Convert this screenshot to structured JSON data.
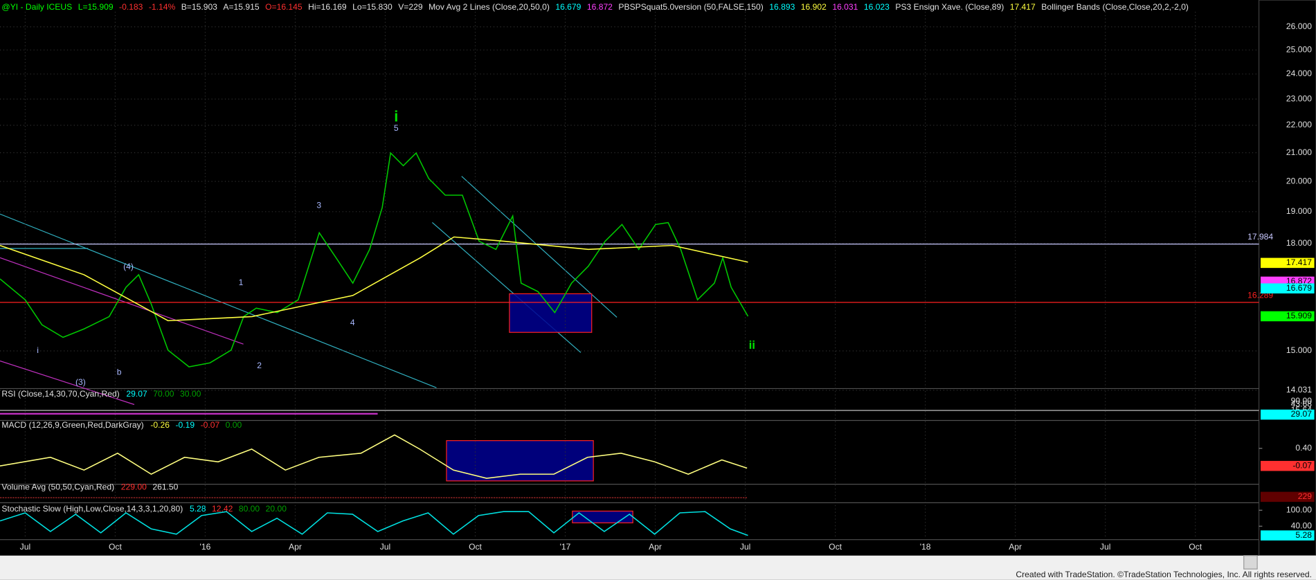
{
  "header": {
    "items": [
      {
        "text": "@YI - Daily  ICEUS",
        "color": "#00ff00"
      },
      {
        "text": "L=15.909",
        "color": "#00ff00"
      },
      {
        "text": "-0.183",
        "color": "#ff3030"
      },
      {
        "text": "-1.14%",
        "color": "#ff3030"
      },
      {
        "text": "B=15.903",
        "color": "#e0e0e0"
      },
      {
        "text": "A=15.915",
        "color": "#e0e0e0"
      },
      {
        "text": "O=16.145",
        "color": "#ff3030"
      },
      {
        "text": "Hi=16.169",
        "color": "#e0e0e0"
      },
      {
        "text": "Lo=15.830",
        "color": "#e0e0e0"
      },
      {
        "text": "V=229",
        "color": "#e0e0e0"
      },
      {
        "text": "Mov Avg 2 Lines (Close,20,50,0)",
        "color": "#e0e0e0"
      },
      {
        "text": "16.679",
        "color": "#00ffff"
      },
      {
        "text": "16.872",
        "color": "#ff40ff"
      },
      {
        "text": "PBSPSquat5.0version (50,FALSE,150)",
        "color": "#e0e0e0"
      },
      {
        "text": "16.893",
        "color": "#00ffff"
      },
      {
        "text": "16.902",
        "color": "#ffff40"
      },
      {
        "text": "16.031",
        "color": "#ff40ff"
      },
      {
        "text": "16.023",
        "color": "#00ffff"
      },
      {
        "text": "PS3 Ensign Xave. (Close,89)",
        "color": "#e0e0e0"
      },
      {
        "text": "17.417",
        "color": "#ffff40"
      },
      {
        "text": "Bollinger Bands (Close,Close,20,2,-2,0)",
        "color": "#e0e0e0"
      }
    ]
  },
  "panels": [
    {
      "title": "RSI (Close,14,30,70,Cyan,Red)",
      "values": [
        {
          "text": "29.07",
          "color": "#00ffff"
        },
        {
          "text": "70.00",
          "color": "#00a000"
        },
        {
          "text": "30.00",
          "color": "#00a000"
        }
      ],
      "axis_labels": [
        {
          "text": "90.00",
          "color": "#e0e0e0"
        },
        {
          "text": "43.68",
          "color": "#e0e0e0"
        },
        {
          "text": "15.64",
          "color": "#e0e0e0"
        },
        {
          "text": "29.07",
          "color": "#00ffff",
          "badge": true
        }
      ]
    },
    {
      "title": "Volume Avg (50,50,Cyan,Red)",
      "values": [
        {
          "text": "229.00",
          "color": "#ff3030"
        },
        {
          "text": "261.50",
          "color": "#e0e0e0"
        }
      ],
      "axis_labels": [
        {
          "text": "229",
          "color": "#ff3030",
          "badge": true
        }
      ]
    }
  ],
  "chart_data": [
    {
      "type": "line",
      "log_scale": true,
      "grid": true,
      "xlim": [
        -0.84,
        41.12
      ],
      "xticks": [
        {
          "value": 0,
          "label": "Jul"
        },
        {
          "value": 3,
          "label": "Oct"
        },
        {
          "value": 6,
          "label": "'16"
        },
        {
          "value": 9,
          "label": "Apr"
        },
        {
          "value": 12,
          "label": "Jul"
        },
        {
          "value": 15,
          "label": "Oct"
        },
        {
          "value": 18,
          "label": "'17"
        },
        {
          "value": 21,
          "label": "Apr"
        },
        {
          "value": 24,
          "label": "Jul"
        },
        {
          "value": 27,
          "label": "Oct"
        },
        {
          "value": 30,
          "label": "'18"
        },
        {
          "value": 33,
          "label": "Apr"
        },
        {
          "value": 36,
          "label": "Jul"
        },
        {
          "value": 39,
          "label": "Oct"
        }
      ],
      "ylim": [
        14.031,
        26.9
      ],
      "yticks": [
        14.031,
        {
          "value": 15,
          "label": "15.000"
        },
        {
          "value": 18,
          "label": "18.000"
        },
        {
          "value": 19,
          "label": "19.000"
        },
        {
          "value": 20,
          "label": "20.000"
        },
        {
          "value": 21,
          "label": "21.000"
        },
        {
          "value": 22,
          "label": "22.000"
        },
        {
          "value": 23,
          "label": "23.000"
        },
        {
          "value": 24,
          "label": "24.000"
        },
        {
          "value": 25,
          "label": "25.000"
        },
        {
          "value": 26,
          "label": "26.000"
        }
      ],
      "x": [
        -0.84,
        0,
        0.56,
        1.26,
        1.96,
        2.8,
        3.36,
        3.78,
        4.2,
        4.76,
        5.46,
        6.16,
        6.86,
        7.28,
        7.7,
        8.4,
        9.1,
        9.8,
        10.36,
        10.92,
        11.48,
        11.9,
        12.18,
        12.6,
        13.03,
        13.45,
        14.0,
        14.57,
        15.13,
        15.69,
        16.25,
        16.53,
        17.09,
        17.65,
        18.21,
        18.77,
        19.33,
        19.89,
        20.45,
        21.01,
        21.43,
        21.85,
        22.41,
        22.97,
        23.25,
        23.53,
        24.09
      ],
      "series": [
        {
          "color": "#00c800",
          "values": [
            16.95,
            16.36,
            15.68,
            15.35,
            15.57,
            15.9,
            16.71,
            17.07,
            16.24,
            15.02,
            14.6,
            14.7,
            15.02,
            15.9,
            16.13,
            16.01,
            16.36,
            18.33,
            17.57,
            16.83,
            17.82,
            19.13,
            20.99,
            20.54,
            20.99,
            20.1,
            19.54,
            19.54,
            18.07,
            17.82,
            18.86,
            16.83,
            16.59,
            16.01,
            16.83,
            17.32,
            18.07,
            18.59,
            17.82,
            18.59,
            18.65,
            17.82,
            16.36,
            16.83,
            17.57,
            16.71,
            15.909
          ]
        },
        {
          "color": "#ffff40",
          "x": [
            -0.84,
            1.96,
            4.76,
            7.56,
            10.92,
            13.17,
            14.29,
            15.97,
            18.77,
            21.57,
            24.09
          ],
          "values": [
            17.94,
            17.07,
            15.79,
            15.9,
            16.48,
            17.57,
            18.2,
            18.07,
            17.82,
            17.94,
            17.44
          ]
        }
      ],
      "levels": [
        {
          "value": 17.984,
          "color": "#c8c8ff"
        },
        {
          "value": 16.289,
          "color": "#ff2020"
        }
      ],
      "badges": [
        {
          "value": 17.417,
          "color": "#ffff00"
        },
        {
          "value": 16.872,
          "color": "#ff40ff"
        },
        {
          "value": 16.679,
          "color": "#00ffff"
        },
        {
          "value": 15.909,
          "color": "#00ff00"
        }
      ],
      "annotations": [
        {
          "text": "i",
          "color": "#00e000"
        },
        {
          "text": "5",
          "color": "#a8b8ff"
        },
        {
          "text": "3",
          "color": "#a8b8ff"
        },
        {
          "text": "1",
          "color": "#a8b8ff"
        },
        {
          "text": "2",
          "color": "#a8b8ff"
        },
        {
          "text": "4",
          "color": "#a8b8ff"
        },
        {
          "text": "(4)",
          "color": "#a8b8ff"
        },
        {
          "text": "(3)",
          "color": "#a8b8ff"
        },
        {
          "text": "b",
          "color": "#a8b8ff"
        },
        {
          "text": "i",
          "color": "#a8b8ff"
        },
        {
          "text": "ii",
          "color": "#00e000"
        }
      ]
    },
    {
      "type": "line",
      "title": "MACD (12,26,9,Green,Red,DarkGray)",
      "legend_items": [
        {
          "text": "-0.26",
          "color": "#ffff40"
        },
        {
          "text": "-0.19",
          "color": "#00ffff"
        },
        {
          "text": "-0.07",
          "color": "#ff3030"
        },
        {
          "text": "0.00",
          "color": "#00a000"
        }
      ],
      "ylim": [
        -0.56,
        1.1
      ],
      "yticks": [
        {
          "value": 0.4,
          "label": "0.40"
        }
      ],
      "x": [
        -0.84,
        0.84,
        1.96,
        3.08,
        4.2,
        5.31,
        6.43,
        7.55,
        8.67,
        9.79,
        11.19,
        12.31,
        13.15,
        14.27,
        15.38,
        16.5,
        17.62,
        18.74,
        19.86,
        20.98,
        22.1,
        23.22,
        24.06
      ],
      "series": [
        {
          "color": "#ffff80",
          "values": [
            -0.07,
            0.16,
            -0.18,
            0.27,
            -0.29,
            0.16,
            0.04,
            0.38,
            -0.18,
            0.16,
            0.27,
            0.76,
            0.38,
            -0.18,
            -0.4,
            -0.29,
            -0.29,
            0.16,
            0.27,
            0.04,
            -0.29,
            0.09,
            -0.13
          ]
        }
      ],
      "badges": [
        {
          "value": -0.07,
          "color": "#ff3030"
        }
      ]
    },
    {
      "type": "line",
      "title": "Stochastic Slow (High,Low,Close,14,3,3,1,20,80)",
      "legend_items": [
        {
          "text": "5.28",
          "color": "#00ffff"
        },
        {
          "text": "12.42",
          "color": "#ff3030"
        },
        {
          "text": "80.00",
          "color": "#00a000"
        },
        {
          "text": "20.00",
          "color": "#00a000"
        }
      ],
      "ylim": [
        -4.2,
        115.7
      ],
      "yticks": [
        {
          "value": 100,
          "label": "100.00"
        },
        {
          "value": 40,
          "label": "40.00"
        }
      ],
      "x": [
        -0.84,
        0,
        0.84,
        1.68,
        2.52,
        3.36,
        4.2,
        5.04,
        5.88,
        6.71,
        7.55,
        8.39,
        9.23,
        10.07,
        10.91,
        11.75,
        12.59,
        13.43,
        14.27,
        15.11,
        15.94,
        16.78,
        17.62,
        18.46,
        19.3,
        20.14,
        20.98,
        21.82,
        22.66,
        23.5,
        24.09
      ],
      "series": [
        {
          "color": "#00e0e0",
          "values": [
            60,
            90,
            20,
            85,
            15,
            90,
            30,
            10,
            80,
            95,
            20,
            70,
            10,
            90,
            85,
            20,
            60,
            90,
            10,
            80,
            95,
            95,
            15,
            90,
            20,
            85,
            10,
            90,
            95,
            30,
            5.28
          ]
        }
      ],
      "badges": [
        {
          "value": 5.28,
          "color": "#00ffff"
        }
      ]
    }
  ],
  "footer": "Created with TradeStation. ©TradeStation Technologies, Inc. All rights reserved."
}
